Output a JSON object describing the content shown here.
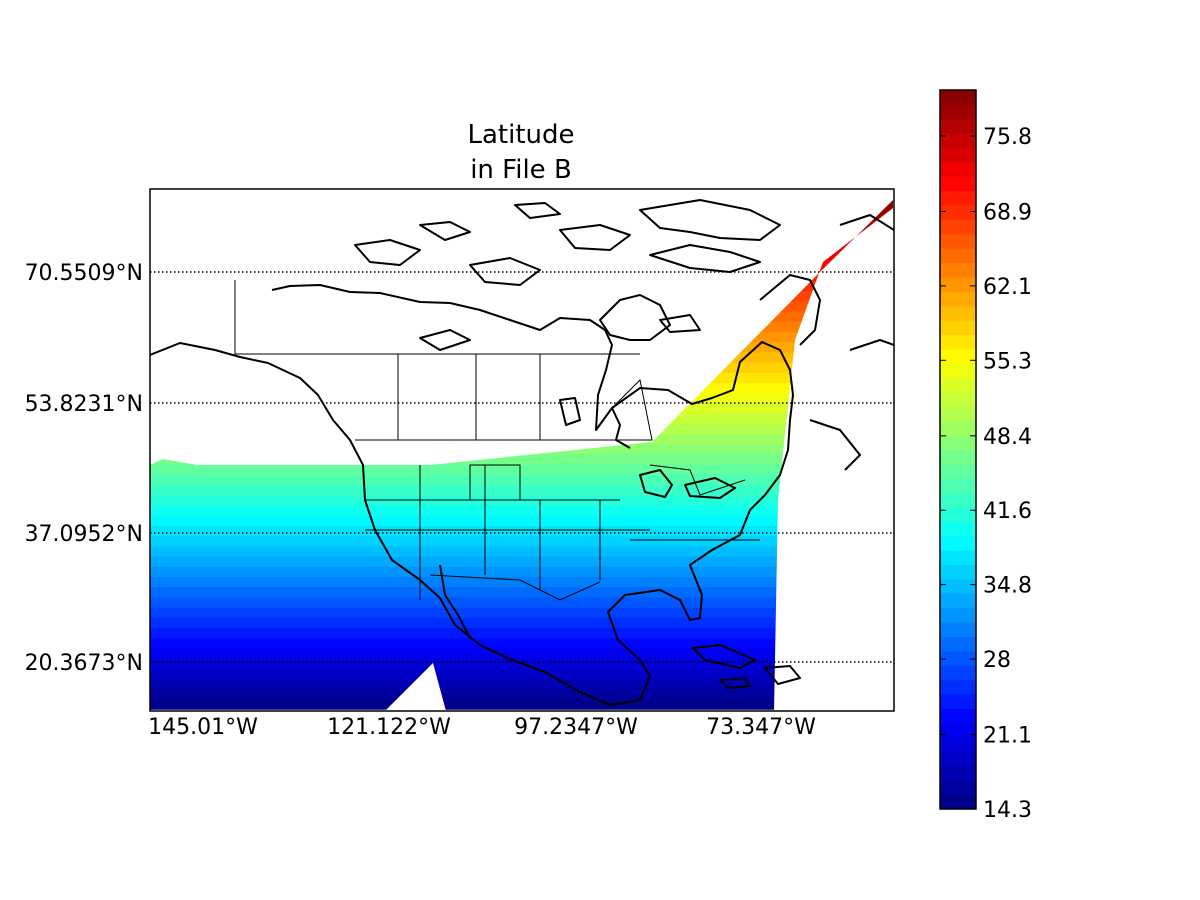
{
  "chart_data": {
    "type": "heatmap",
    "title_lines": [
      "Latitude",
      "in File B"
    ],
    "map_projection": "lambert-conformal",
    "map_region": "North America",
    "lat_ticks": [
      {
        "value": 70.5509,
        "label": "70.5509°N"
      },
      {
        "value": 53.8231,
        "label": "53.8231°N"
      },
      {
        "value": 37.0952,
        "label": "37.0952°N"
      },
      {
        "value": 20.3673,
        "label": "20.3673°N"
      }
    ],
    "lon_ticks": [
      {
        "value": -145.01,
        "label": "145.01°W"
      },
      {
        "value": -121.122,
        "label": "121.122°W"
      },
      {
        "value": -97.2347,
        "label": "97.2347°W"
      },
      {
        "value": -73.347,
        "label": "73.347°W"
      }
    ],
    "grid": "dotted parallels",
    "colorbar": {
      "colormap": "jet",
      "min": 14.3,
      "max": 80.0,
      "ticks": [
        14.3,
        21.1,
        28,
        34.8,
        41.6,
        48.4,
        55.3,
        62.1,
        68.9,
        75.8
      ],
      "tick_labels": [
        "14.3",
        "21.1",
        "28",
        "34.8",
        "41.6",
        "48.4",
        "55.3",
        "62.1",
        "68.9",
        "75.8"
      ]
    },
    "data_extent": {
      "lat_min": 14.3,
      "lat_max": 80.0
    }
  }
}
